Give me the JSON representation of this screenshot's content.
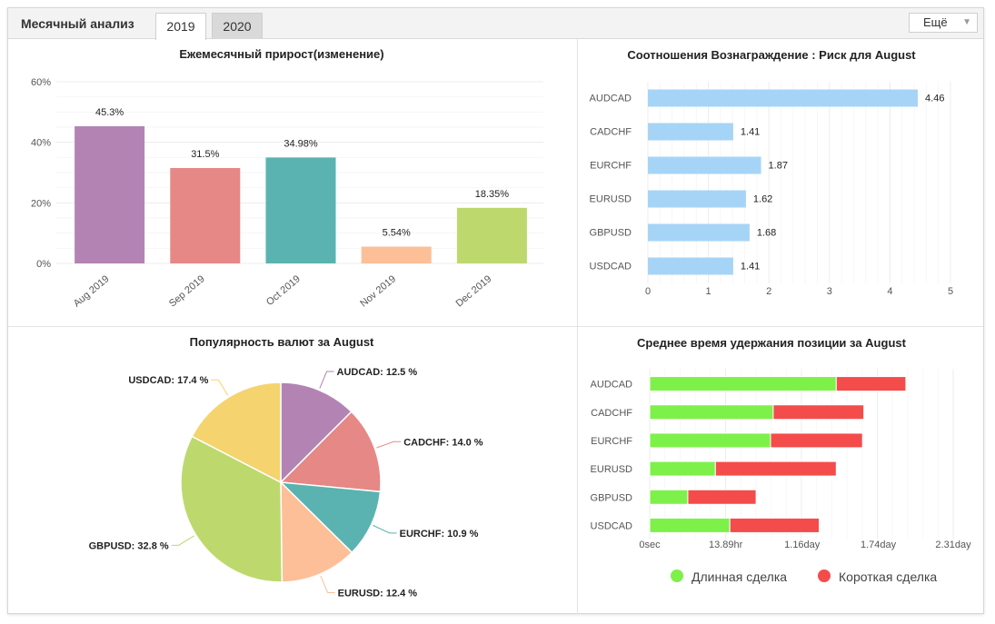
{
  "header": {
    "title": "Месячный анализ",
    "tabs": [
      {
        "label": "2019",
        "active": true
      },
      {
        "label": "2020",
        "active": false
      }
    ],
    "more_button": "Ещё"
  },
  "chart_data": [
    {
      "id": "monthly",
      "type": "bar",
      "title": "Ежемесячный прирост(изменение)",
      "categories": [
        "Aug 2019",
        "Sep 2019",
        "Oct 2019",
        "Nov 2019",
        "Dec 2019"
      ],
      "values": [
        45.3,
        31.5,
        34.98,
        5.54,
        18.35
      ],
      "value_labels": [
        "45.3%",
        "31.5%",
        "34.98%",
        "5.54%",
        "18.35%"
      ],
      "colors": [
        "#b384b3",
        "#e58886",
        "#5ab3b0",
        "#fdbf97",
        "#bdd96e"
      ],
      "ylim": [
        0,
        60
      ],
      "yticks": [
        0,
        20,
        40,
        60
      ],
      "ytick_labels": [
        "0%",
        "20%",
        "40%",
        "60%"
      ],
      "grid": true
    },
    {
      "id": "reward_risk",
      "type": "bar",
      "orientation": "horizontal",
      "title": "Соотношения Вознаграждение : Риск для August",
      "categories": [
        "AUDCAD",
        "CADCHF",
        "EURCHF",
        "EURUSD",
        "GBPUSD",
        "USDCAD"
      ],
      "values": [
        4.46,
        1.41,
        1.87,
        1.62,
        1.68,
        1.41
      ],
      "value_labels": [
        "4.46",
        "1.41",
        "1.87",
        "1.62",
        "1.68",
        "1.41"
      ],
      "color": "#a6d4f7",
      "xlim": [
        0,
        5
      ],
      "xticks": [
        0,
        1,
        2,
        3,
        4,
        5
      ],
      "grid": true
    },
    {
      "id": "popularity",
      "type": "pie",
      "title": "Популярность валют за August",
      "slices": [
        {
          "label": "AUDCAD: 12.5 %",
          "value": 12.5,
          "color": "#b384b3"
        },
        {
          "label": "CADCHF: 14.0 %",
          "value": 14.0,
          "color": "#e58886"
        },
        {
          "label": "EURCHF: 10.9 %",
          "value": 10.9,
          "color": "#5ab3b0"
        },
        {
          "label": "EURUSD: 12.4 %",
          "value": 12.4,
          "color": "#fdbf97"
        },
        {
          "label": "GBPUSD: 32.8 %",
          "value": 32.8,
          "color": "#bdd96e"
        },
        {
          "label": "USDCAD: 17.4 %",
          "value": 17.4,
          "color": "#f5d46f"
        }
      ]
    },
    {
      "id": "holding_time",
      "type": "bar",
      "orientation": "horizontal",
      "stacked": true,
      "title": "Среднее время удержания позиции за August",
      "categories": [
        "AUDCAD",
        "CADCHF",
        "EURCHF",
        "EURUSD",
        "GBPUSD",
        "USDCAD"
      ],
      "x_unit": "day",
      "xlim": [
        0,
        2.31
      ],
      "xticks": [
        0,
        0.5787,
        1.16,
        1.74,
        2.31
      ],
      "xtick_labels": [
        "0sec",
        "13.89hr",
        "1.16day",
        "1.74day",
        "2.31day"
      ],
      "series": [
        {
          "name": "Длинная сделка",
          "color": "#7ef04a",
          "values": [
            1.42,
            0.94,
            0.92,
            0.5,
            0.29,
            0.61
          ]
        },
        {
          "name": "Короткая сделка",
          "color": "#f44b4b",
          "values": [
            0.53,
            0.69,
            0.7,
            0.92,
            0.52,
            0.68
          ]
        }
      ],
      "legend_position": "bottom",
      "grid": true
    }
  ]
}
